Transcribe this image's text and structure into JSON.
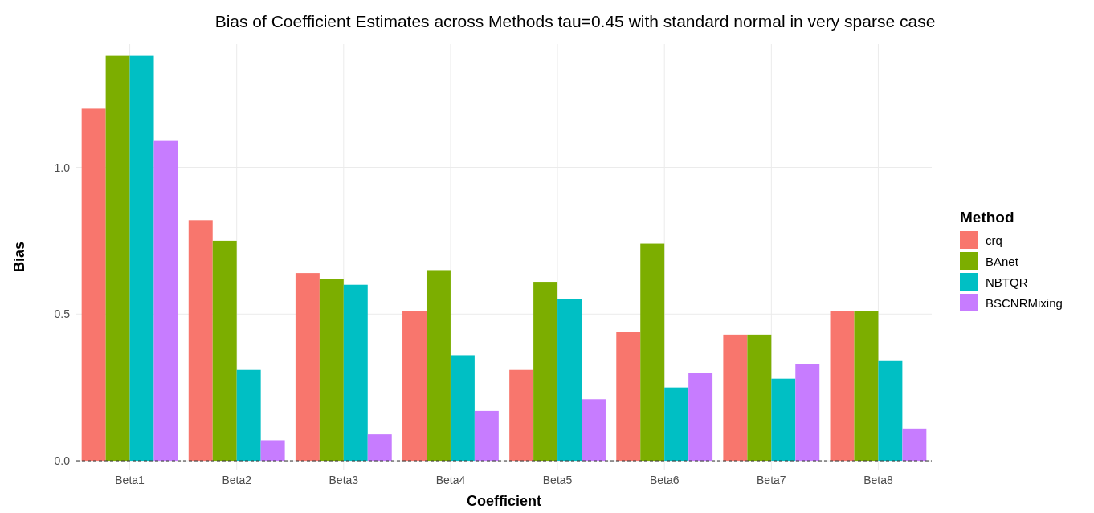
{
  "chart_data": {
    "type": "bar",
    "title": "Bias of Coefficient Estimates across Methods tau=0.45 with standard normal in very sparse case",
    "xlabel": "Coefficient",
    "ylabel": "Bias",
    "legend_title": "Method",
    "legend": "right",
    "grid": true,
    "categories": [
      "Beta1",
      "Beta2",
      "Beta3",
      "Beta4",
      "Beta5",
      "Beta6",
      "Beta7",
      "Beta8"
    ],
    "ylim": [
      -0.03,
      1.42
    ],
    "yticks": [
      {
        "value": 0,
        "label": "0.0"
      },
      0.5,
      {
        "value": 1,
        "label": "1.0"
      }
    ],
    "ref_lines": [
      {
        "axis": "y",
        "value": 0,
        "line_style": "dashed",
        "color": "#333333"
      }
    ],
    "series": [
      {
        "name": "crq",
        "color": "#f8766d",
        "values": [
          1.2,
          0.82,
          0.64,
          0.51,
          0.31,
          0.44,
          0.43,
          0.51
        ]
      },
      {
        "name": "BAnet",
        "color": "#7cae00",
        "values": [
          1.38,
          0.75,
          0.62,
          0.65,
          0.61,
          0.74,
          0.43,
          0.51
        ]
      },
      {
        "name": "NBTQR",
        "color": "#00bfc4",
        "values": [
          1.38,
          0.31,
          0.6,
          0.36,
          0.55,
          0.25,
          0.28,
          0.34
        ]
      },
      {
        "name": "BSCNRMixing",
        "color": "#c77cff",
        "values": [
          1.09,
          0.07,
          0.09,
          0.17,
          0.21,
          0.3,
          0.33,
          0.11
        ]
      }
    ]
  }
}
